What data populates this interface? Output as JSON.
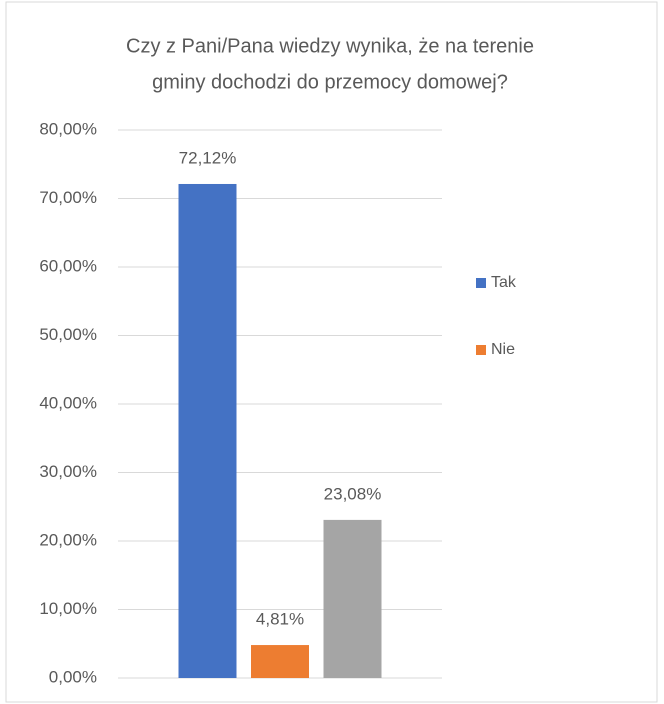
{
  "chart_data": {
    "type": "bar",
    "title": [
      "Czy z Pani/Pana wiedzy wynika, że na terenie",
      "gminy dochodzi do przemocy domowej?"
    ],
    "categories": [
      null
    ],
    "series": [
      {
        "name": "Tak",
        "color": "#4472c4",
        "values": [
          72.12
        ],
        "value_labels": [
          "72,12%"
        ]
      },
      {
        "name": "Nie",
        "color": "#ed7d31",
        "values": [
          4.81
        ],
        "value_labels": [
          "4,81%"
        ]
      },
      {
        "color": "#a5a5a5",
        "values": [
          23.08
        ],
        "value_labels": [
          "23,08%"
        ]
      }
    ],
    "ylim": [
      0,
      80
    ],
    "yticks": [
      {
        "value": 0,
        "label": "0,00%"
      },
      {
        "value": 10,
        "label": "10,00%"
      },
      {
        "value": 20,
        "label": "20,00%"
      },
      {
        "value": 30,
        "label": "30,00%"
      },
      {
        "value": 40,
        "label": "40,00%"
      },
      {
        "value": 50,
        "label": "50,00%"
      },
      {
        "value": 60,
        "label": "60,00%"
      },
      {
        "value": 70,
        "label": "70,00%"
      },
      {
        "value": 80,
        "label": "80,00%"
      }
    ],
    "grid": true,
    "legend": "right"
  }
}
